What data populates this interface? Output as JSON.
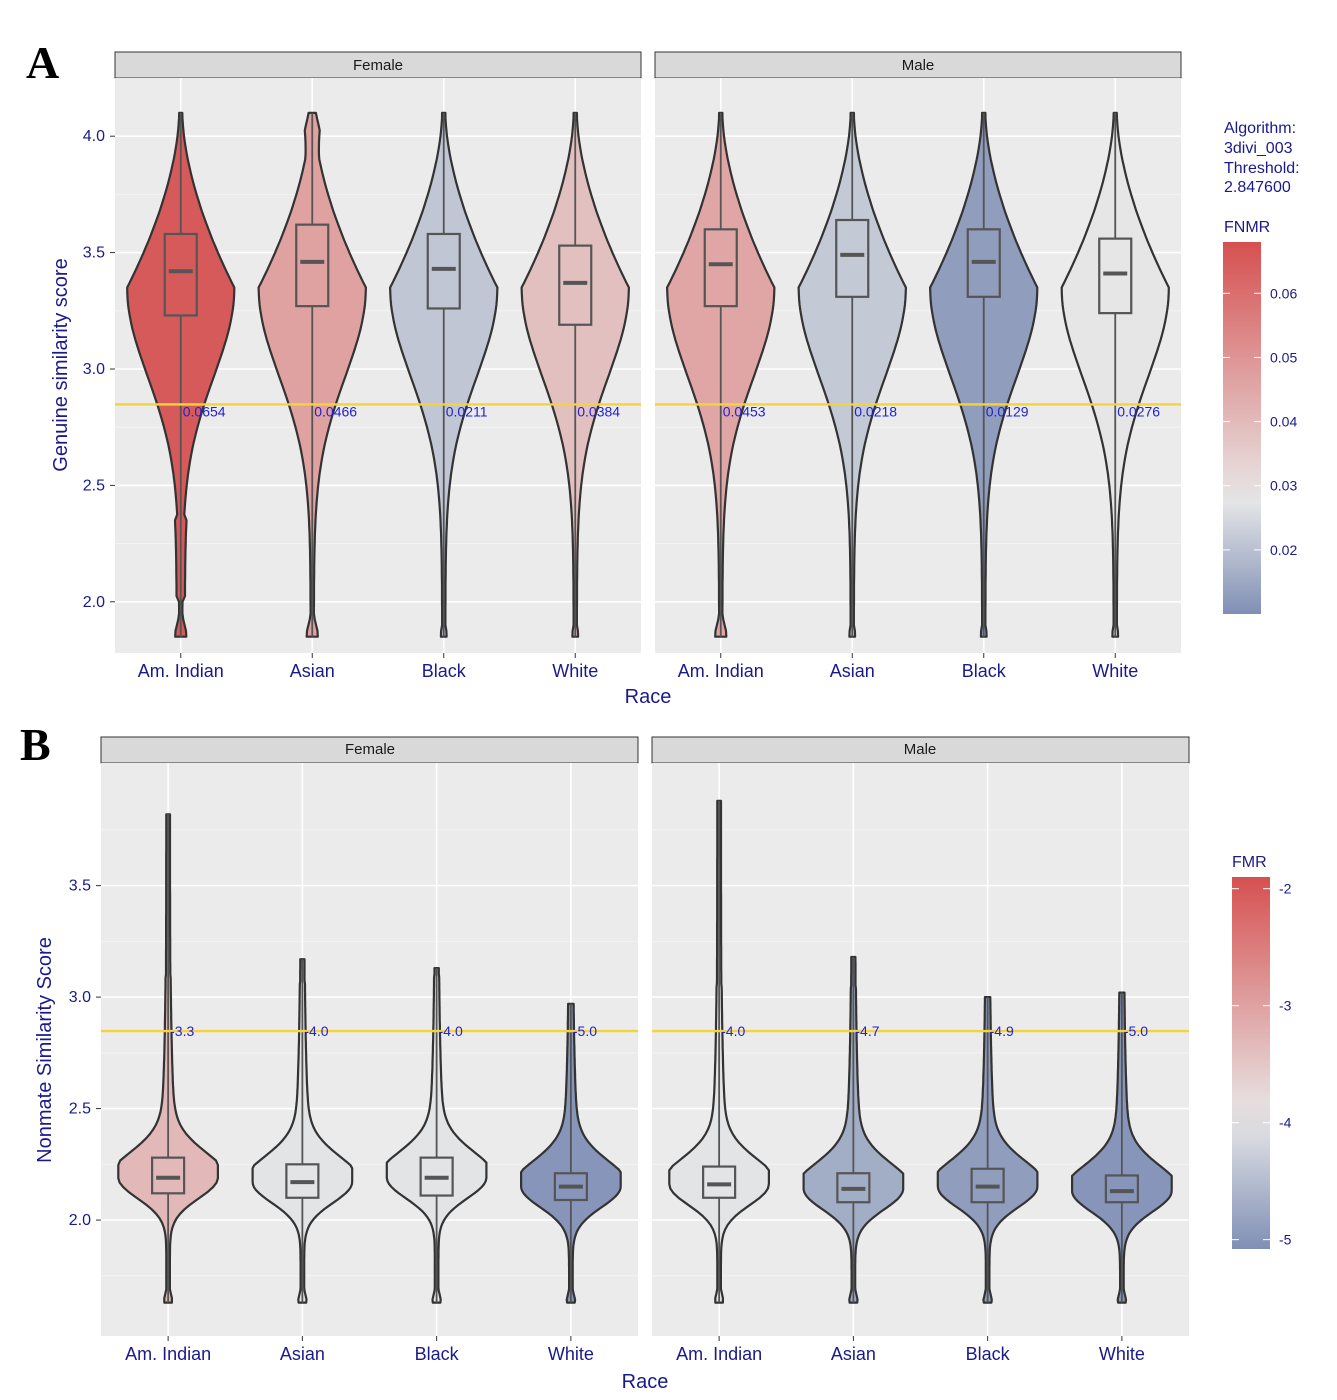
{
  "chart_data": [
    {
      "panel_label": "A",
      "type": "violin",
      "facets": [
        "Female",
        "Male"
      ],
      "categories": [
        "Am. Indian",
        "Asian",
        "Black",
        "White"
      ],
      "xlabel": "Race",
      "ylabel": "Genuine similarity score",
      "ylim": [
        1.78,
        4.25
      ],
      "yticks": [
        "2.0",
        "2.5",
        "3.0",
        "3.5",
        "4.0"
      ],
      "ytick_values": [
        2.0,
        2.5,
        3.0,
        3.5,
        4.0
      ],
      "threshold": 2.8476,
      "y_min": 1.85,
      "y_max": 4.1,
      "series": [
        {
          "facet": "Female",
          "race": "Am. Indian",
          "rate": 0.0654,
          "label": "0.0654",
          "median": 3.42,
          "q1": 3.23,
          "q3": 3.58,
          "tail": "heavy"
        },
        {
          "facet": "Female",
          "race": "Asian",
          "rate": 0.0466,
          "label": "0.0466",
          "median": 3.46,
          "q1": 3.27,
          "q3": 3.62,
          "tail": "heavy"
        },
        {
          "facet": "Female",
          "race": "Black",
          "rate": 0.0211,
          "label": "0.0211",
          "median": 3.43,
          "q1": 3.26,
          "q3": 3.58,
          "tail": "light"
        },
        {
          "facet": "Female",
          "race": "White",
          "rate": 0.0384,
          "label": "0.0384",
          "median": 3.37,
          "q1": 3.19,
          "q3": 3.53,
          "tail": "light"
        },
        {
          "facet": "Male",
          "race": "Am. Indian",
          "rate": 0.0453,
          "label": "0.0453",
          "median": 3.45,
          "q1": 3.27,
          "q3": 3.6,
          "tail": "heavy"
        },
        {
          "facet": "Male",
          "race": "Asian",
          "rate": 0.0218,
          "label": "0.0218",
          "median": 3.49,
          "q1": 3.31,
          "q3": 3.64,
          "tail": "light"
        },
        {
          "facet": "Male",
          "race": "Black",
          "rate": 0.0129,
          "label": "0.0129",
          "median": 3.46,
          "q1": 3.31,
          "q3": 3.6,
          "tail": "light"
        },
        {
          "facet": "Male",
          "race": "White",
          "rate": 0.0276,
          "label": "0.0276",
          "median": 3.41,
          "q1": 3.24,
          "q3": 3.56,
          "tail": "light"
        }
      ],
      "legend": {
        "annotation": [
          "Algorithm:",
          "3divi_003",
          "Threshold:",
          "2.847600"
        ],
        "title": "FNMR",
        "range": [
          0.01,
          0.068
        ],
        "ticks": [
          "0.06",
          "0.05",
          "0.04",
          "0.03",
          "0.02"
        ],
        "tick_values": [
          0.06,
          0.05,
          0.04,
          0.03,
          0.02
        ],
        "mid": 0.028
      }
    },
    {
      "panel_label": "B",
      "type": "violin",
      "facets": [
        "Female",
        "Male"
      ],
      "categories": [
        "Am. Indian",
        "Asian",
        "Black",
        "White"
      ],
      "xlabel": "Race",
      "ylabel": "Nonmate Similarity Score",
      "ylim": [
        1.48,
        4.05
      ],
      "yticks": [
        "2.0",
        "2.5",
        "3.0",
        "3.5"
      ],
      "ytick_values": [
        2.0,
        2.5,
        3.0,
        3.5
      ],
      "threshold": 2.8476,
      "y_min": 1.63,
      "series": [
        {
          "facet": "Female",
          "race": "Am. Indian",
          "rate": -3.3,
          "label": "-3.3",
          "median": 2.19,
          "q1": 2.12,
          "q3": 2.28,
          "max": 3.82
        },
        {
          "facet": "Female",
          "race": "Asian",
          "rate": -4.0,
          "label": "-4.0",
          "median": 2.17,
          "q1": 2.1,
          "q3": 2.25,
          "max": 3.17
        },
        {
          "facet": "Female",
          "race": "Black",
          "rate": -4.0,
          "label": "-4.0",
          "median": 2.19,
          "q1": 2.11,
          "q3": 2.28,
          "max": 3.13
        },
        {
          "facet": "Female",
          "race": "White",
          "rate": -5.0,
          "label": "-5.0",
          "median": 2.15,
          "q1": 2.09,
          "q3": 2.21,
          "max": 2.97
        },
        {
          "facet": "Male",
          "race": "Am. Indian",
          "rate": -4.0,
          "label": "-4.0",
          "median": 2.16,
          "q1": 2.1,
          "q3": 2.24,
          "max": 3.88
        },
        {
          "facet": "Male",
          "race": "Asian",
          "rate": -4.7,
          "label": "-4.7",
          "median": 2.14,
          "q1": 2.08,
          "q3": 2.21,
          "max": 3.18
        },
        {
          "facet": "Male",
          "race": "Black",
          "rate": -4.9,
          "label": "-4.9",
          "median": 2.15,
          "q1": 2.08,
          "q3": 2.23,
          "max": 3.0
        },
        {
          "facet": "Male",
          "race": "White",
          "rate": -5.0,
          "label": "-5.0",
          "median": 2.13,
          "q1": 2.08,
          "q3": 2.2,
          "max": 3.02
        }
      ],
      "legend": {
        "title": "FMR",
        "range": [
          -5.08,
          -1.9
        ],
        "ticks": [
          "-2",
          "-3",
          "-4",
          "-5"
        ],
        "tick_values": [
          -2,
          -3,
          -4,
          -5
        ],
        "mid": -3.95
      }
    }
  ],
  "colors": {
    "low": "#7f8fb5",
    "mid": "#e8e8e8",
    "high": "#d65050",
    "threshold_line": "#f5d33b",
    "panel_bg": "#ebebeb",
    "grid_major": "#ffffff",
    "strip_bg": "#d9d9d9",
    "outline": "#333333",
    "box": "#555555"
  }
}
